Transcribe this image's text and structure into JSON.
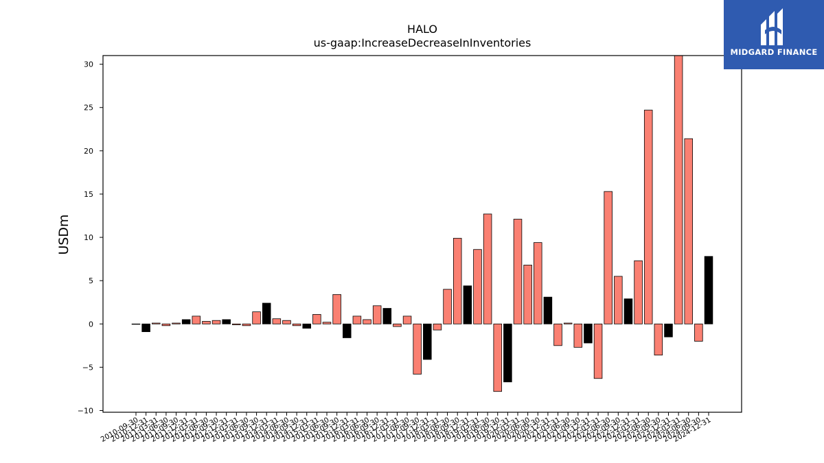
{
  "chart_data": {
    "type": "bar",
    "title": "HALO",
    "subtitle": "us-gaap:IncreaseDecreaseInInventories",
    "xlabel": "",
    "ylabel": "USDm",
    "ylim": [
      -10.2,
      31
    ],
    "yticks": [
      -10,
      -5,
      0,
      5,
      10,
      15,
      20,
      25,
      30
    ],
    "grid": false,
    "colors": {
      "quarter": "#fa8072",
      "year_end": "#000000",
      "edge": "#000000"
    },
    "categories": [
      "2010-09-30",
      "2010-12-31",
      "2011-03-31",
      "2011-06-30",
      "2011-09-30",
      "2011-12-31",
      "2012-03-31",
      "2012-06-30",
      "2012-09-30",
      "2012-12-31",
      "2013-03-31",
      "2013-06-30",
      "2013-09-30",
      "2013-12-31",
      "2014-03-31",
      "2014-06-30",
      "2014-09-30",
      "2014-12-31",
      "2015-03-31",
      "2015-06-30",
      "2015-09-30",
      "2015-12-31",
      "2016-03-31",
      "2016-06-30",
      "2016-09-30",
      "2016-12-31",
      "2017-03-31",
      "2017-06-30",
      "2017-09-30",
      "2017-12-31",
      "2018-03-31",
      "2018-06-30",
      "2018-09-30",
      "2018-12-31",
      "2019-03-31",
      "2019-06-30",
      "2019-09-30",
      "2019-12-31",
      "2020-03-31",
      "2020-06-30",
      "2020-09-30",
      "2020-12-31",
      "2021-03-31",
      "2021-06-30",
      "2021-09-30",
      "2021-12-31",
      "2022-03-31",
      "2022-06-30",
      "2022-09-30",
      "2022-12-31",
      "2023-03-31",
      "2023-06-30",
      "2023-09-30",
      "2023-12-31",
      "2024-03-31",
      "2024-06-30",
      "2024-09-30",
      "2024-12-31"
    ],
    "values": [
      0.0,
      -0.9,
      0.1,
      -0.2,
      0.1,
      0.5,
      0.9,
      0.3,
      0.4,
      0.5,
      -0.1,
      -0.2,
      1.4,
      2.4,
      0.6,
      0.4,
      -0.2,
      -0.5,
      1.1,
      0.2,
      3.4,
      -1.6,
      0.9,
      0.5,
      2.1,
      1.8,
      -0.3,
      0.9,
      -5.8,
      -4.1,
      -0.7,
      4.0,
      9.9,
      4.4,
      8.6,
      12.7,
      -7.8,
      -6.7,
      12.1,
      6.8,
      9.4,
      3.1,
      -2.5,
      0.1,
      -2.7,
      -2.2,
      -6.3,
      15.3,
      5.5,
      2.9,
      7.3,
      24.7,
      -3.6,
      -1.5,
      31.0,
      21.4,
      -2.0,
      7.8
    ]
  },
  "logo": {
    "text": "MIDGARD FINANCE"
  }
}
